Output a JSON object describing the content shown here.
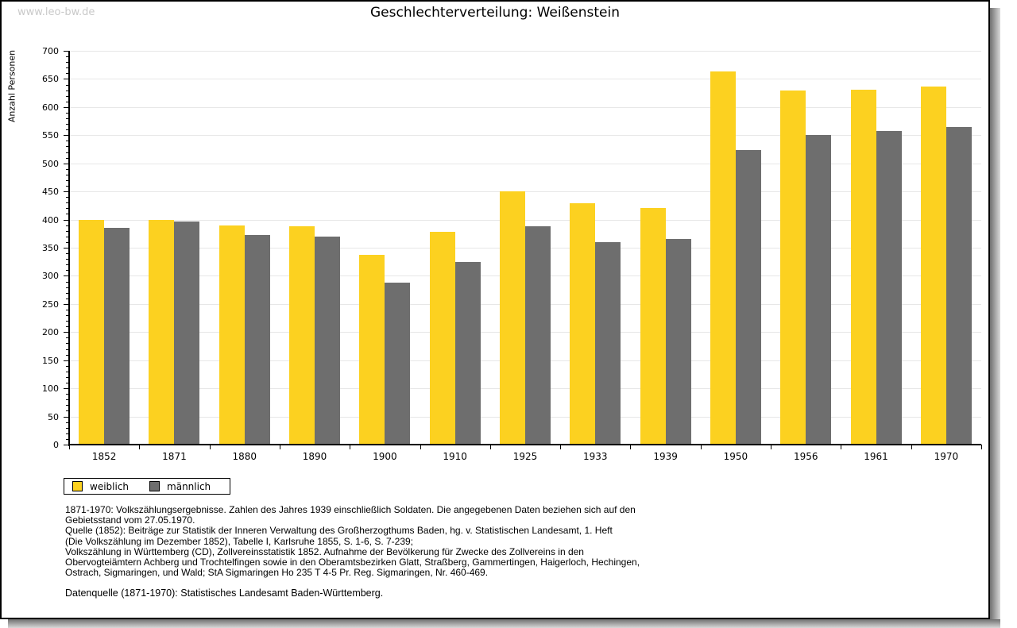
{
  "watermark": "www.leo-bw.de",
  "title": "Geschlechterverteilung: Weißenstein",
  "chart_data": {
    "type": "bar",
    "title": "Geschlechterverteilung: Weißenstein",
    "xlabel": "",
    "ylabel": "Anzahl Personen",
    "ylim": [
      0,
      700
    ],
    "ytick_step": 50,
    "ytick_minor_step": 10,
    "grid": true,
    "legend_position": "bottom-left",
    "categories": [
      "1852",
      "1871",
      "1880",
      "1890",
      "1900",
      "1910",
      "1925",
      "1933",
      "1939",
      "1950",
      "1956",
      "1961",
      "1970"
    ],
    "series": [
      {
        "name": "weiblich",
        "color": "#fcd120",
        "values": [
          400,
          400,
          390,
          388,
          337,
          378,
          450,
          429,
          421,
          664,
          630,
          631,
          636
        ]
      },
      {
        "name": "männlich",
        "color": "#6e6e6e",
        "values": [
          385,
          397,
          373,
          370,
          288,
          325,
          388,
          360,
          366,
          523,
          550,
          557,
          565
        ]
      }
    ]
  },
  "footer": {
    "notes": [
      "1871-1970: Volkszählungsergebnisse. Zahlen des Jahres 1939 einschließlich Soldaten. Die angegebenen Daten beziehen sich auf den",
      "Gebietsstand vom 27.05.1970.",
      "Quelle (1852): Beiträge zur Statistik der Inneren Verwaltung des Großherzogthums Baden, hg. v. Statistischen Landesamt, 1. Heft",
      "(Die Volkszählung im Dezember 1852), Tabelle I, Karlsruhe 1855, S. 1-6, S. 7-239;",
      "Volkszählung in Württemberg (CD), Zollvereinsstatistik 1852. Aufnahme der Bevölkerung für Zwecke des Zollvereins in den",
      "Obervogteiämtern Achberg und Trochtelfingen sowie in den Oberamtsbezirken Glatt, Straßberg, Gammertingen, Haigerloch, Hechingen,",
      "Ostrach, Sigmaringen, und Wald; StA Sigmaringen Ho 235 T 4-5 Pr. Reg. Sigmaringen, Nr. 460-469."
    ],
    "datasource": "Datenquelle (1871-1970): Statistisches Landesamt Baden-Württemberg."
  }
}
